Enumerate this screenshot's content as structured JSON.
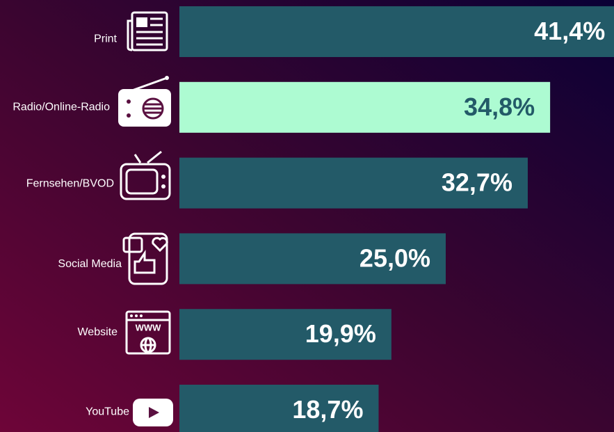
{
  "chart_data": {
    "type": "bar",
    "orientation": "horizontal",
    "categories": [
      "Print",
      "Radio/Online-Radio",
      "Fernsehen/BVOD",
      "Social Media",
      "Website",
      "YouTube"
    ],
    "values": [
      41.4,
      34.8,
      32.7,
      25.0,
      19.9,
      18.7
    ],
    "value_labels": [
      "41,4%",
      "34,8%",
      "32,7%",
      "25,0%",
      "19,9%",
      "18,7%"
    ],
    "colors": [
      "#235a68",
      "#adfbd2",
      "#235a68",
      "#235a68",
      "#235a68",
      "#235a68"
    ],
    "label_colors": [
      "#ffffff",
      "#235a68",
      "#ffffff",
      "#ffffff",
      "#ffffff",
      "#ffffff"
    ]
  }
}
